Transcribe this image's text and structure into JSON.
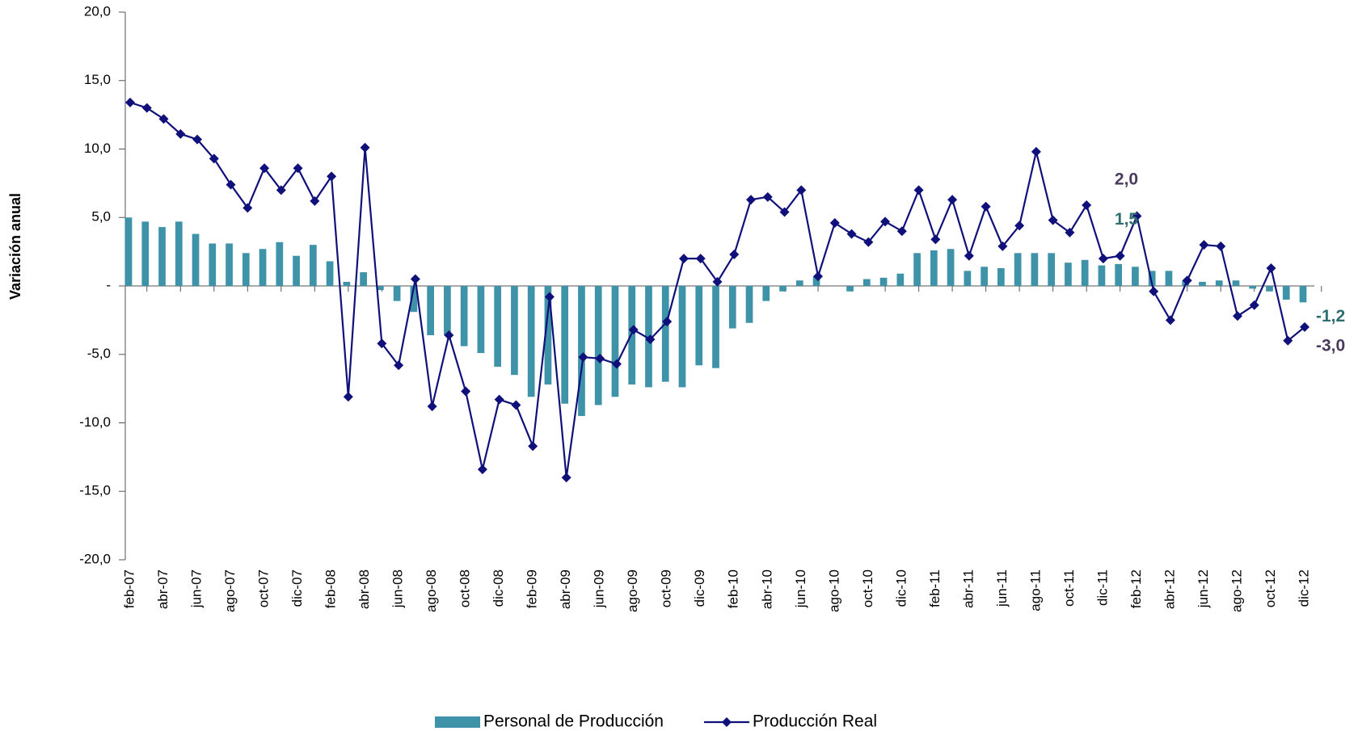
{
  "chart_data": {
    "type": "bar-line",
    "y_label": "Variación  anual",
    "categories": [
      "feb-07",
      null,
      "abr-07",
      null,
      "jun-07",
      null,
      "ago-07",
      null,
      "oct-07",
      null,
      "dic-07",
      null,
      "feb-08",
      null,
      "abr-08",
      null,
      "jun-08",
      null,
      "ago-08",
      null,
      "oct-08",
      null,
      "dic-08",
      null,
      "feb-09",
      null,
      "abr-09",
      null,
      "jun-09",
      null,
      "ago-09",
      null,
      "oct-09",
      null,
      "dic-09",
      null,
      "feb-10",
      null,
      "abr-10",
      null,
      "jun-10",
      null,
      "ago-10",
      null,
      "oct-10",
      null,
      "dic-10",
      null,
      "feb-11",
      null,
      "abr-11",
      null,
      "jun-11",
      null,
      "ago-11",
      null,
      "oct-11",
      null,
      "dic-11",
      null,
      "feb-12",
      null,
      "abr-12",
      null,
      "jun-12",
      null,
      "ago-12",
      null,
      "oct-12",
      null,
      "dic-12"
    ],
    "series": [
      {
        "name": "Personal de Producción",
        "type": "bar",
        "color": "#3f93a8",
        "label_color": "#2e6e6e",
        "values": [
          5.0,
          4.7,
          4.3,
          4.7,
          3.8,
          3.1,
          3.1,
          2.4,
          2.7,
          3.2,
          2.2,
          3.0,
          1.8,
          0.3,
          1.0,
          -0.3,
          -1.1,
          -1.9,
          -3.6,
          -3.6,
          -4.4,
          -4.9,
          -5.9,
          -6.5,
          -8.1,
          -7.2,
          -8.6,
          -9.5,
          -8.7,
          -8.1,
          -7.2,
          -7.4,
          -7.0,
          -7.4,
          -5.8,
          -6.0,
          -3.1,
          -2.7,
          -1.1,
          -0.4,
          0.4,
          0.7,
          0.0,
          -0.4,
          0.5,
          0.6,
          0.9,
          2.4,
          2.6,
          2.7,
          1.1,
          1.4,
          1.3,
          2.4,
          2.4,
          2.4,
          1.7,
          1.9,
          1.5,
          1.6,
          1.4,
          1.1,
          1.1,
          0.4,
          0.3,
          0.4,
          0.4,
          -0.2,
          -0.4,
          -1.0,
          -1.2
        ],
        "value_labels": [
          null,
          null,
          null,
          null,
          null,
          null,
          null,
          null,
          null,
          null,
          null,
          null,
          null,
          null,
          null,
          null,
          null,
          null,
          null,
          null,
          null,
          null,
          null,
          null,
          null,
          null,
          null,
          null,
          null,
          null,
          null,
          null,
          null,
          null,
          null,
          null,
          null,
          null,
          null,
          null,
          null,
          null,
          null,
          null,
          null,
          null,
          null,
          null,
          null,
          null,
          null,
          null,
          null,
          null,
          null,
          null,
          null,
          null,
          "1,5",
          null,
          null,
          null,
          null,
          null,
          null,
          null,
          null,
          null,
          null,
          null,
          "-1,2"
        ]
      },
      {
        "name": "Producción Real",
        "type": "line",
        "color": "#10107a",
        "label_color": "#4a3a5e",
        "values": [
          13.4,
          13.0,
          12.2,
          11.1,
          10.7,
          9.3,
          7.4,
          5.7,
          8.6,
          7.0,
          8.6,
          6.2,
          8.0,
          -8.1,
          10.1,
          -4.2,
          -5.8,
          0.5,
          -8.8,
          -3.6,
          -7.7,
          -13.4,
          -8.3,
          -8.7,
          -11.7,
          -0.8,
          -14.0,
          -5.2,
          -5.3,
          -5.7,
          -3.2,
          -3.9,
          -2.6,
          2.0,
          2.0,
          0.3,
          2.3,
          6.3,
          6.5,
          5.4,
          7.0,
          0.7,
          4.6,
          3.8,
          3.2,
          4.7,
          4.0,
          7.0,
          3.4,
          6.3,
          2.2,
          5.8,
          2.9,
          4.4,
          9.8,
          4.8,
          3.9,
          5.9,
          2.0,
          2.2,
          5.1,
          -0.4,
          -2.5,
          0.4,
          3.0,
          2.9,
          -2.2,
          -1.4,
          1.3,
          -4.0,
          -3.0
        ],
        "value_labels": [
          null,
          null,
          null,
          null,
          null,
          null,
          null,
          null,
          null,
          null,
          null,
          null,
          null,
          null,
          null,
          null,
          null,
          null,
          null,
          null,
          null,
          null,
          null,
          null,
          null,
          null,
          null,
          null,
          null,
          null,
          null,
          null,
          null,
          null,
          null,
          null,
          null,
          null,
          null,
          null,
          null,
          null,
          null,
          null,
          null,
          null,
          null,
          null,
          null,
          null,
          null,
          null,
          null,
          null,
          null,
          null,
          null,
          null,
          "2,0",
          null,
          null,
          null,
          null,
          null,
          null,
          null,
          null,
          null,
          null,
          null,
          "-3,0"
        ]
      }
    ],
    "ylim": [
      -20,
      20
    ],
    "yticks": [
      {
        "value": -20,
        "label": "-20,0"
      },
      {
        "value": -15,
        "label": "-15,0"
      },
      {
        "value": -10,
        "label": "-10,0"
      },
      {
        "value": -5,
        "label": "-5,0"
      },
      {
        "value": 0,
        "label": "-"
      },
      {
        "value": 5,
        "label": "5,0"
      },
      {
        "value": 10,
        "label": "10,0"
      },
      {
        "value": 15,
        "label": "15,0"
      },
      {
        "value": 20,
        "label": "20,0"
      }
    ],
    "grid": false
  }
}
